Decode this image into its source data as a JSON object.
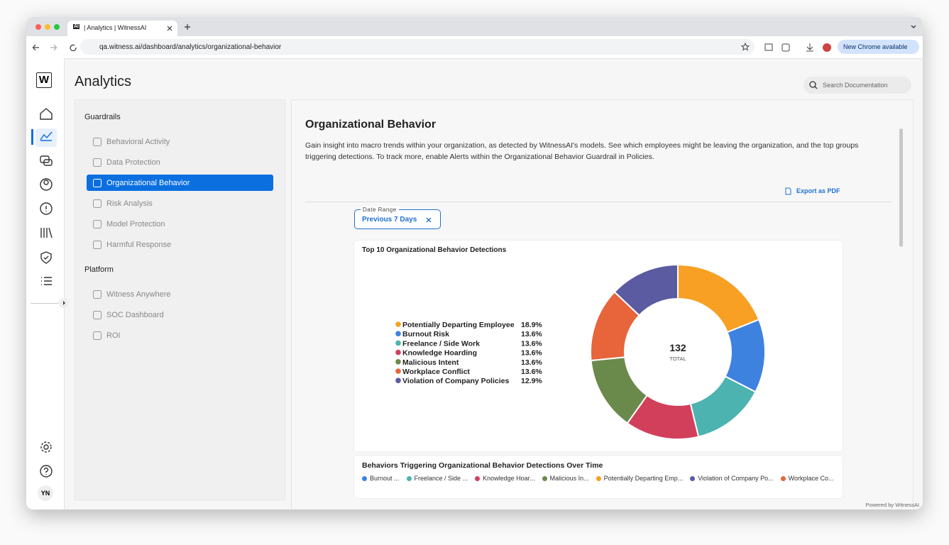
{
  "browser": {
    "tab_icon": "AI",
    "tab_title": "| Analytics | WitnessAI",
    "url": "qa.witness.ai/dashboard/analytics/organizational-behavior",
    "update_button": "New Chrome available"
  },
  "sidebar": {
    "logo": "W",
    "user_initials": "YN"
  },
  "header": {
    "title": "Analytics",
    "search_placeholder": "Search Documentation"
  },
  "nav": {
    "sections": [
      {
        "title": "Guardrails",
        "items": [
          "Behavioral Activity",
          "Data Protection",
          "Organizational Behavior",
          "Risk Analysis",
          "Model Protection",
          "Harmful Response"
        ]
      },
      {
        "title": "Platform",
        "items": [
          "Witness Anywhere",
          "SOC Dashboard",
          "ROI"
        ]
      }
    ]
  },
  "content": {
    "title": "Organizational Behavior",
    "description": "Gain insight into macro trends within your organization, as detected by WitnessAI's models. See which employees might be leaving the organization, and the top groups triggering detections. To track more, enable Alerts within the Organizational Behavior Guardrail in Policies.",
    "export_button": "Export as PDF",
    "date_range": {
      "label": "Date Range",
      "value": "Previous 7 Days"
    }
  },
  "chart_data": {
    "type": "donut",
    "title": "Top 10 Organizational Behavior Detections",
    "categories": [
      "Potentially Departing Employee",
      "Burnout Risk",
      "Freelance / Side Work",
      "Knowledge Hoarding",
      "Malicious Intent",
      "Workplace Conflict",
      "Violation of Company Policies"
    ],
    "values": [
      18.9,
      13.6,
      13.6,
      13.6,
      13.6,
      13.6,
      12.9
    ],
    "value_labels": [
      "18.9%",
      "13.6%",
      "13.6%",
      "13.6%",
      "13.6%",
      "13.6%",
      "12.9%"
    ],
    "colors": [
      "#f7a024",
      "#3e82e0",
      "#4cb3b0",
      "#d23f5b",
      "#6a8a4c",
      "#e8643a",
      "#5a5ba0"
    ],
    "center_value": 132,
    "center_label": "TOTAL"
  },
  "second_chart": {
    "title": "Behaviors Triggering Organizational Behavior Detections Over Time",
    "legend": [
      {
        "name": "Burnout ...",
        "color": "#3e82e0"
      },
      {
        "name": "Freelance / Side ...",
        "color": "#4cb3b0"
      },
      {
        "name": "Knowledge Hoar...",
        "color": "#d23f5b"
      },
      {
        "name": "Malicious In...",
        "color": "#6a8a4c"
      },
      {
        "name": "Potentially Departing Emp...",
        "color": "#f7a024"
      },
      {
        "name": "Violation of Company Po...",
        "color": "#5a5ba0"
      },
      {
        "name": "Workplace Co...",
        "color": "#e8643a"
      }
    ]
  },
  "footer": "Powered by WitnessAI"
}
